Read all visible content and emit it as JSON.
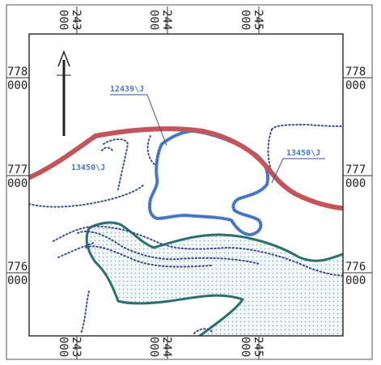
{
  "map": {
    "north_arrow": {
      "direction": "N",
      "label": ""
    },
    "coordinates": {
      "eastings": [
        {
          "top": "243",
          "bottom": "000"
        },
        {
          "top": "244",
          "bottom": "000"
        },
        {
          "top": "245",
          "bottom": "000"
        }
      ],
      "northings": [
        {
          "top": "778",
          "bottom": "000"
        },
        {
          "top": "777",
          "bottom": "000"
        },
        {
          "top": "776",
          "bottom": "000"
        }
      ]
    },
    "parcels": [
      {
        "label": "12439\\J"
      },
      {
        "label": "13450\\J"
      },
      {
        "label": "13450\\J"
      }
    ],
    "colors": {
      "road": "#c4545a",
      "parcel_outline": "#4a7fd0",
      "boundary_dotted": "#3a4f8e",
      "water_outline": "#2e6e6e",
      "water_fill_dots": "#8fb5c0",
      "frame": "#333333"
    }
  }
}
